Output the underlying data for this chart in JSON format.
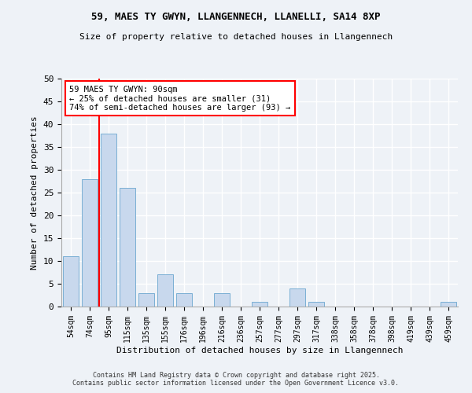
{
  "title1": "59, MAES TY GWYN, LLANGENNECH, LLANELLI, SA14 8XP",
  "title2": "Size of property relative to detached houses in Llangennech",
  "xlabel": "Distribution of detached houses by size in Llangennech",
  "ylabel": "Number of detached properties",
  "categories": [
    "54sqm",
    "74sqm",
    "95sqm",
    "115sqm",
    "135sqm",
    "155sqm",
    "176sqm",
    "196sqm",
    "216sqm",
    "236sqm",
    "257sqm",
    "277sqm",
    "297sqm",
    "317sqm",
    "338sqm",
    "358sqm",
    "378sqm",
    "398sqm",
    "419sqm",
    "439sqm",
    "459sqm"
  ],
  "values": [
    11,
    28,
    38,
    26,
    3,
    7,
    3,
    0,
    3,
    0,
    1,
    0,
    4,
    1,
    0,
    0,
    0,
    0,
    0,
    0,
    1
  ],
  "bar_color": "#c8d8ed",
  "bar_edge_color": "#7aafd4",
  "vline_x": 1.5,
  "vline_color": "red",
  "annotation_text": "59 MAES TY GWYN: 90sqm\n← 25% of detached houses are smaller (31)\n74% of semi-detached houses are larger (93) →",
  "annotation_box_color": "white",
  "annotation_box_edge_color": "red",
  "ylim_max": 50,
  "yticks": [
    0,
    5,
    10,
    15,
    20,
    25,
    30,
    35,
    40,
    45,
    50
  ],
  "footer1": "Contains HM Land Registry data © Crown copyright and database right 2025.",
  "footer2": "Contains public sector information licensed under the Open Government Licence v3.0.",
  "background_color": "#eef2f7",
  "grid_color": "#ffffff"
}
